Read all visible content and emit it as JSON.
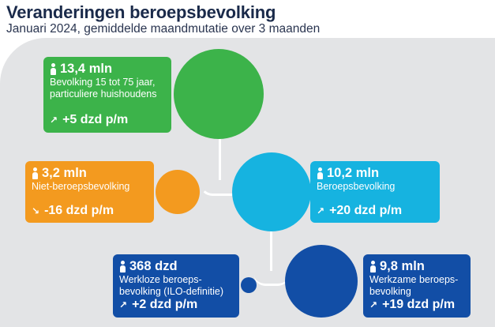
{
  "header": {
    "title": "Veranderingen beroepsbevolking",
    "subtitle": "Januari 2024, gemiddelde maandmutatie over 3 maanden"
  },
  "colors": {
    "green": "#3cb34a",
    "orange": "#f39a1f",
    "blue": "#16b3e0",
    "navy": "#124ea6",
    "panel": "#e3e4e6"
  },
  "nodes": {
    "population": {
      "amount": "13,4 mln",
      "desc": "Bevolking 15 tot 75 jaar, particuliere huishoudens",
      "change": "+5 dzd p/m",
      "arrow": "↗"
    },
    "non_labour": {
      "amount": "3,2 mln",
      "desc": "Niet-beroepsbevolking",
      "change": "-16 dzd p/m",
      "arrow": "↘"
    },
    "labour": {
      "amount": "10,2 mln",
      "desc": "Beroepsbevolking",
      "change": "+20 dzd p/m",
      "arrow": "↗"
    },
    "unemployed": {
      "amount": "368 dzd",
      "desc": "Werkloze beroeps-bevolking (ILO-definitie)",
      "change": "+2 dzd p/m",
      "arrow": "↗"
    },
    "employed": {
      "amount": "9,8 mln",
      "desc": "Werkzame beroeps-bevolking",
      "change": "+19 dzd p/m",
      "arrow": "↗"
    }
  }
}
